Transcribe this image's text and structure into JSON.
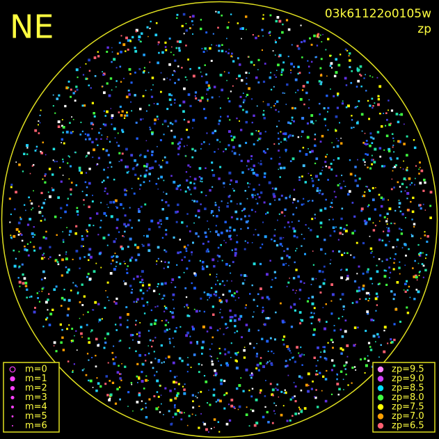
{
  "header": {
    "direction": "NE",
    "frame_id": "03k61122o0105w",
    "quantity": "zp"
  },
  "magnitude_legend": {
    "items": [
      {
        "label": "m=0",
        "hollow": true
      },
      {
        "label": "m=1"
      },
      {
        "label": "m=2"
      },
      {
        "label": "m=3"
      },
      {
        "label": "m=4"
      },
      {
        "label": "m=5"
      },
      {
        "label": "m=6"
      }
    ]
  },
  "zp_legend": {
    "items": [
      {
        "label": "zp=9.5",
        "color": "#ff80ff"
      },
      {
        "label": "zp=9.0",
        "color": "#d040ff"
      },
      {
        "label": "zp=8.5",
        "color": "#00e0ff"
      },
      {
        "label": "zp=8.0",
        "color": "#40ff40"
      },
      {
        "label": "zp=7.5",
        "color": "#ffff00"
      },
      {
        "label": "zp=7.0",
        "color": "#ffa000"
      },
      {
        "label": "zp=6.5",
        "color": "#ff6070"
      }
    ]
  }
}
